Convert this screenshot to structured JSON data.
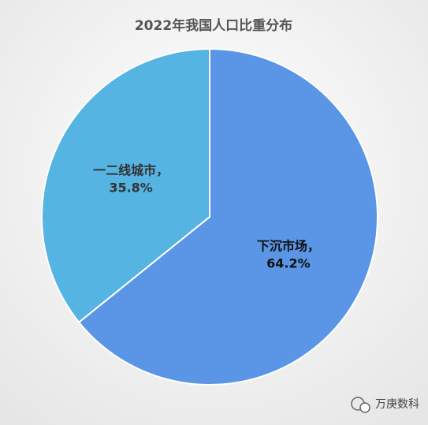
{
  "chart_data": {
    "type": "pie",
    "title": "2022年我国人口比重分布",
    "categories": [
      "下沉市场，",
      "一二线城市，"
    ],
    "values": [
      64.2,
      35.8
    ],
    "value_labels": [
      "64.2%",
      "35.8%"
    ],
    "colors": [
      "#5b95e5",
      "#56b4e3"
    ],
    "watermark": "万庚数科"
  }
}
